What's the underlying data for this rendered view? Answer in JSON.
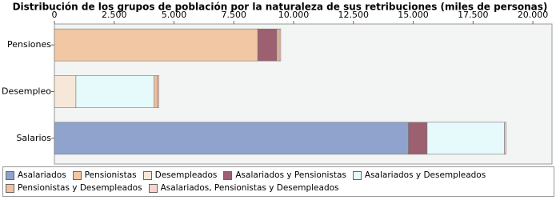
{
  "chart_data": {
    "type": "hbar-stacked",
    "title": "Distribución de los grupos de población por la naturaleza de sus retribuciones (miles de personas)",
    "categories": [
      "Pensiones",
      "Desempleo",
      "Salarios"
    ],
    "xlim": [
      0,
      20800
    ],
    "xticks": [
      0,
      {
        "value": 2500,
        "label": "2.500"
      },
      {
        "value": 5000,
        "label": "5.000"
      },
      {
        "value": 7500,
        "label": "7.500"
      },
      {
        "value": 10000,
        "label": "10.000"
      },
      {
        "value": 12500,
        "label": "12.500"
      },
      {
        "value": 15000,
        "label": "15.000"
      },
      {
        "value": 17500,
        "label": "17.500"
      },
      {
        "value": 20000,
        "label": "20.000"
      }
    ],
    "series": [
      {
        "name": "Asalariados",
        "color": "#8fa3cc",
        "values": [
          0,
          0,
          14800
        ]
      },
      {
        "name": "Pensionistas",
        "color": "#f2c8a4",
        "values": [
          8500,
          0,
          0
        ]
      },
      {
        "name": "Desempleados",
        "color": "#f6e8d8",
        "values": [
          0,
          900,
          0
        ]
      },
      {
        "name": "Asalariados y Pensionistas",
        "color": "#9c6070",
        "values": [
          800,
          0,
          780
        ]
      },
      {
        "name": "Asalariados y Desempleados",
        "color": "#e6fafc",
        "values": [
          0,
          3270,
          3230
        ]
      },
      {
        "name": "Pensionistas y Desempleados",
        "color": "#f0c0a0",
        "values": [
          100,
          130,
          0
        ]
      },
      {
        "name": "Asalariados, Pensionistas y Desempleados",
        "color": "#f8d4cc",
        "values": [
          60,
          70,
          70
        ]
      }
    ]
  }
}
